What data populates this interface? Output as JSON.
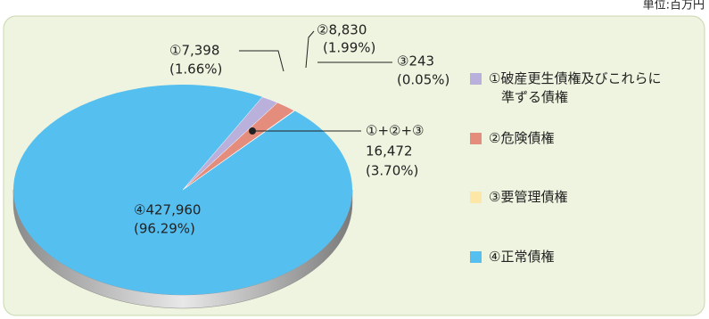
{
  "chart_data": {
    "type": "pie",
    "unit": "単位:百万円",
    "categories": [
      "①破産更生債権及びこれらに準ずる債権",
      "②危険債権",
      "③要管理債権",
      "④正常債権"
    ],
    "values": [
      7398,
      8830,
      243,
      427960
    ],
    "value_labels": [
      "①7,398",
      "②8,830",
      "③243",
      "④427,960"
    ],
    "percents": [
      1.66,
      1.99,
      0.05,
      96.29
    ],
    "percent_labels": [
      "(1.66%)",
      "(1.99%)",
      "(0.05%)",
      "(96.29%)"
    ],
    "colors": [
      "#b9b0dc",
      "#e58d7c",
      "#fde7a6",
      "#55bff0"
    ],
    "sum_annotation": {
      "label": "①+②+③",
      "value": 16472,
      "value_label": "16,472",
      "percent": 3.7,
      "percent_label": "(3.70%)"
    }
  }
}
